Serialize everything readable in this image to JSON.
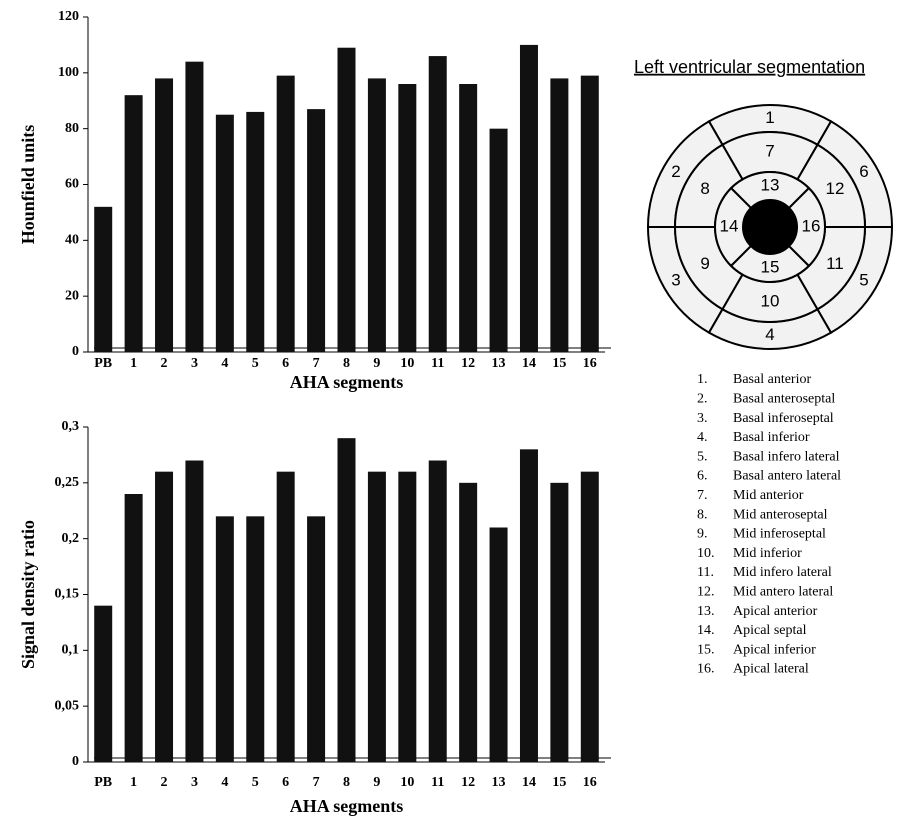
{
  "chart_data": [
    {
      "type": "bar",
      "y_label": "Hounfield units",
      "x_label": "AHA segments",
      "categories": [
        "PB",
        "1",
        "2",
        "3",
        "4",
        "5",
        "6",
        "7",
        "8",
        "9",
        "10",
        "11",
        "12",
        "13",
        "14",
        "15",
        "16"
      ],
      "values": [
        52,
        92,
        98,
        104,
        85,
        86,
        99,
        87,
        109,
        98,
        96,
        106,
        96,
        80,
        110,
        98,
        99
      ],
      "color": "#111111",
      "ylim": [
        0,
        120
      ],
      "yticks": [
        0,
        20,
        40,
        60,
        80,
        100,
        120
      ],
      "grid": false
    },
    {
      "type": "bar",
      "y_label": "Signal density ratio",
      "x_label": "AHA segments",
      "categories": [
        "PB",
        "1",
        "2",
        "3",
        "4",
        "5",
        "6",
        "7",
        "8",
        "9",
        "10",
        "11",
        "12",
        "13",
        "14",
        "15",
        "16"
      ],
      "values": [
        0.14,
        0.24,
        0.26,
        0.27,
        0.22,
        0.22,
        0.26,
        0.22,
        0.29,
        0.26,
        0.26,
        0.27,
        0.25,
        0.21,
        0.28,
        0.25,
        0.26
      ],
      "color": "#111111",
      "ylim": [
        0,
        0.3
      ],
      "yticks": [
        0,
        {
          "value": 0.05,
          "label": "0,05"
        },
        {
          "value": 0.1,
          "label": "0,1"
        },
        {
          "value": 0.15,
          "label": "0,15"
        },
        {
          "value": 0.2,
          "label": "0,2"
        },
        {
          "value": 0.25,
          "label": "0,25"
        },
        {
          "value": 0.3,
          "label": "0,3"
        }
      ],
      "grid": false
    }
  ],
  "diagram": {
    "title": "Left ventricular segmentation",
    "bullseye_labels": [
      "1",
      "2",
      "3",
      "4",
      "5",
      "6",
      "7",
      "8",
      "9",
      "10",
      "11",
      "12",
      "13",
      "14",
      "15",
      "16"
    ],
    "segments": [
      {
        "number": "1.",
        "name": "Basal anterior"
      },
      {
        "number": "2.",
        "name": "Basal anteroseptal"
      },
      {
        "number": "3.",
        "name": "Basal inferoseptal"
      },
      {
        "number": "4.",
        "name": "Basal inferior"
      },
      {
        "number": "5.",
        "name": "Basal infero lateral"
      },
      {
        "number": "6.",
        "name": "Basal antero lateral"
      },
      {
        "number": "7.",
        "name": "Mid anterior"
      },
      {
        "number": "8.",
        "name": "Mid anteroseptal"
      },
      {
        "number": "9.",
        "name": "Mid inferoseptal"
      },
      {
        "number": "10.",
        "name": "Mid inferior"
      },
      {
        "number": "11.",
        "name": "Mid infero lateral"
      },
      {
        "number": "12.",
        "name": "Mid antero lateral"
      },
      {
        "number": "13.",
        "name": "Apical anterior"
      },
      {
        "number": "14.",
        "name": "Apical septal"
      },
      {
        "number": "15.",
        "name": "Apical inferior"
      },
      {
        "number": "16.",
        "name": "Apical lateral"
      }
    ]
  }
}
